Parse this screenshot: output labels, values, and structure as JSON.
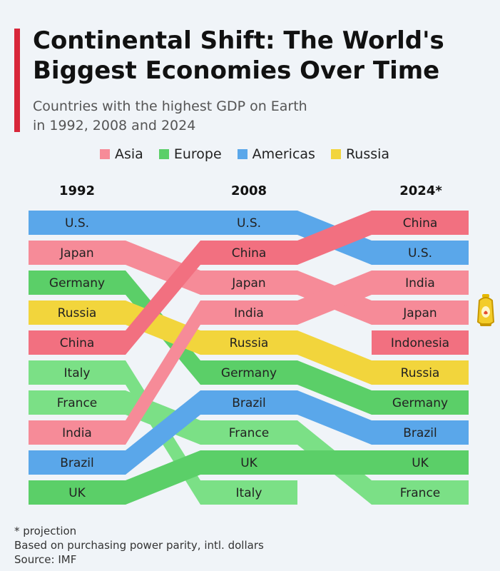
{
  "title_lines": [
    "Continental Shift: The World's",
    "Biggest Economies Over Time"
  ],
  "subtitle_lines": [
    "Countries with the highest GDP on Earth",
    "in 1992, 2008 and 2024"
  ],
  "legend": [
    {
      "label": "Asia",
      "color": "#f68b98"
    },
    {
      "label": "Europe",
      "color": "#5bcf68"
    },
    {
      "label": "Americas",
      "color": "#5aa7ea"
    },
    {
      "label": "Russia",
      "color": "#f2d53c"
    }
  ],
  "columns": [
    "1992",
    "2008",
    "2024*"
  ],
  "footer": [
    "* projection",
    "Based on purchasing power parity, intl. dollars",
    "Source: IMF"
  ],
  "chart_data": {
    "type": "bump",
    "years": [
      "1992",
      "2008",
      "2024*"
    ],
    "series": [
      {
        "name": "U.S.",
        "region": "Americas",
        "ranks": [
          1,
          1,
          2
        ],
        "color": "#5aa7ea"
      },
      {
        "name": "Japan",
        "region": "Asia",
        "ranks": [
          2,
          3,
          4
        ],
        "color": "#f68b98"
      },
      {
        "name": "Germany",
        "region": "Europe",
        "ranks": [
          3,
          6,
          7
        ],
        "color": "#5bcf68"
      },
      {
        "name": "Russia",
        "region": "Russia",
        "ranks": [
          4,
          5,
          6
        ],
        "color": "#f2d53c"
      },
      {
        "name": "China",
        "region": "Asia",
        "ranks": [
          5,
          2,
          1
        ],
        "color": "#f27080"
      },
      {
        "name": "Italy",
        "region": "Europe",
        "ranks": [
          6,
          10,
          null
        ],
        "color": "#7be086"
      },
      {
        "name": "France",
        "region": "Europe",
        "ranks": [
          7,
          8,
          10
        ],
        "color": "#7be086"
      },
      {
        "name": "India",
        "region": "Asia",
        "ranks": [
          8,
          4,
          3
        ],
        "color": "#f68b98"
      },
      {
        "name": "Brazil",
        "region": "Americas",
        "ranks": [
          9,
          7,
          8
        ],
        "color": "#5aa7ea"
      },
      {
        "name": "UK",
        "region": "Europe",
        "ranks": [
          10,
          9,
          9
        ],
        "color": "#5bcf68"
      },
      {
        "name": "Indonesia",
        "region": "Asia",
        "ranks": [
          null,
          null,
          5
        ],
        "color": "#f27080"
      }
    ]
  }
}
